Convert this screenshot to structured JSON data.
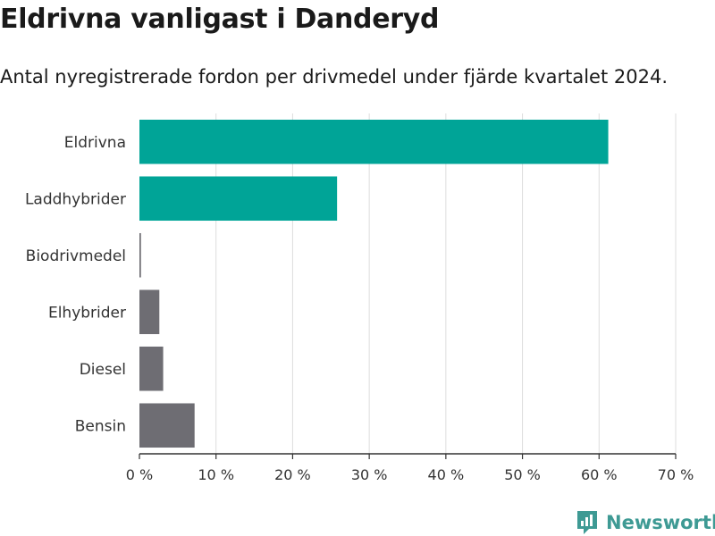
{
  "title": "Eldrivna vanligast i Danderyd",
  "subtitle": "Antal nyregistrerade fordon per drivmedel under fjärde kvartalet 2024.",
  "brand": "Newsworthy",
  "colors": {
    "highlight": "#00a497",
    "other": "#6e6d73",
    "grid": "#dddddd",
    "brand": "#3e9a94"
  },
  "chart_data": {
    "type": "bar",
    "orientation": "horizontal",
    "categories": [
      "Eldrivna",
      "Laddhybrider",
      "Biodrivmedel",
      "Elhybrider",
      "Diesel",
      "Bensin"
    ],
    "values": [
      61.2,
      25.8,
      0.2,
      2.6,
      3.1,
      7.2
    ],
    "highlighted": [
      true,
      true,
      false,
      false,
      false,
      false
    ],
    "xlim": [
      0,
      70
    ],
    "xticks": [
      0,
      10,
      20,
      30,
      40,
      50,
      60,
      70
    ],
    "xtick_labels": [
      "0 %",
      "10 %",
      "20 %",
      "30 %",
      "40 %",
      "50 %",
      "60 %",
      "70 %"
    ],
    "grid": true
  }
}
